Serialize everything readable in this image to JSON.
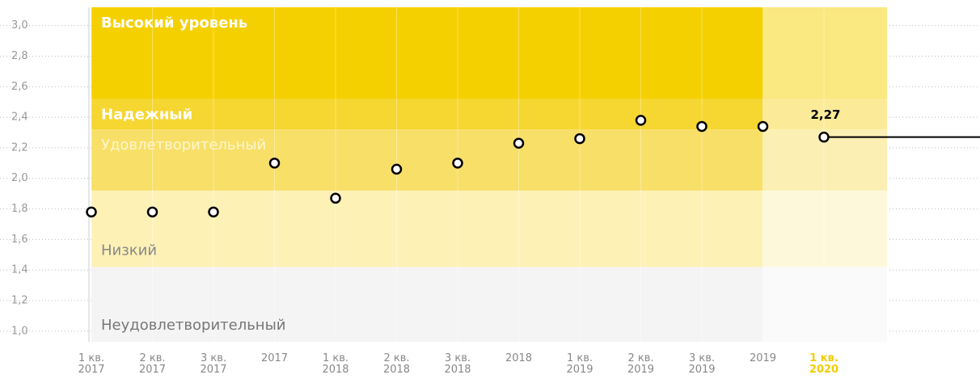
{
  "chart_data": {
    "type": "scatter",
    "categories": [
      [
        "1 кв.",
        "2017"
      ],
      [
        "2 кв.",
        "2017"
      ],
      [
        "3 кв.",
        "2017"
      ],
      [
        "2017"
      ],
      [
        "1 кв.",
        "2018"
      ],
      [
        "2 кв.",
        "2018"
      ],
      [
        "3 кв.",
        "2018"
      ],
      [
        "2018"
      ],
      [
        "1 кв.",
        "2019"
      ],
      [
        "2 кв.",
        "2019"
      ],
      [
        "3 кв.",
        "2019"
      ],
      [
        "2019"
      ],
      [
        "1 кв.",
        "2020"
      ]
    ],
    "values": [
      1.78,
      1.78,
      1.78,
      2.1,
      1.87,
      2.06,
      2.1,
      2.23,
      2.26,
      2.38,
      2.34,
      2.34,
      2.27
    ],
    "value_labels": [
      null,
      null,
      null,
      null,
      null,
      null,
      null,
      null,
      null,
      null,
      null,
      null,
      "2,27"
    ],
    "highlight_category": 12,
    "highlight_color": "#f2cc00",
    "ylim": [
      0.93,
      3.12
    ],
    "yticks": [
      {
        "value": 1.0,
        "label": "1,0"
      },
      {
        "value": 1.2,
        "label": "1,2"
      },
      {
        "value": 1.4,
        "label": "1,4"
      },
      {
        "value": 1.6,
        "label": "1,6"
      },
      {
        "value": 1.8,
        "label": "1,8"
      },
      {
        "value": 2.0,
        "label": "2,0"
      },
      {
        "value": 2.2,
        "label": "2,2"
      },
      {
        "value": 2.4,
        "label": "2,4"
      },
      {
        "value": 2.6,
        "label": "2,6"
      },
      {
        "value": 2.8,
        "label": "2,8"
      },
      {
        "value": 3.0,
        "label": "3,0"
      }
    ],
    "grid": true,
    "bands": [
      {
        "name": "Неудовлетворительный",
        "from": 0.93,
        "to": 1.42,
        "color": "#f4f4f4",
        "text_color": "#777777"
      },
      {
        "name": "Низкий",
        "from": 1.42,
        "to": 1.92,
        "color": "#fdf1b6",
        "text_color": "#888888"
      },
      {
        "name": "Удовлетворительный",
        "from": 1.92,
        "to": 2.32,
        "color": "#f8df68",
        "text_color": "#fdf6cf"
      },
      {
        "name": "Надежный",
        "from": 2.32,
        "to": 2.52,
        "color": "#f6d631",
        "text_color": "#ffffff"
      },
      {
        "name": "Высокий уровень",
        "from": 2.52,
        "to": 3.12,
        "color": "#f5d000",
        "text_color": "#ffffff"
      }
    ]
  }
}
